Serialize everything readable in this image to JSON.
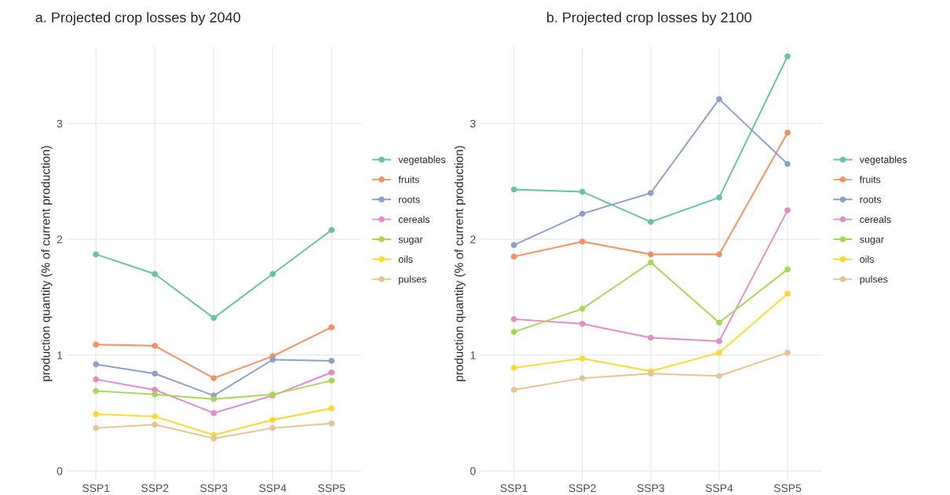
{
  "chart_data": [
    {
      "type": "line",
      "title": "a. Projected crop losses by 2040",
      "ylabel": "production quantity (% of current production)",
      "categories": [
        "SSP1",
        "SSP2",
        "SSP3",
        "SSP4",
        "SSP5"
      ],
      "ylim": [
        -0.08,
        3.66
      ],
      "yticks": [
        0,
        1,
        2,
        3
      ],
      "grid": true,
      "legend": "right",
      "marker": "circle",
      "line_style": "solid",
      "series": [
        {
          "name": "vegetables",
          "color": "#66c2a5",
          "values": [
            1.87,
            1.7,
            1.32,
            1.7,
            2.08
          ]
        },
        {
          "name": "fruits",
          "color": "#fc8d62",
          "values": [
            1.09,
            1.08,
            0.8,
            0.99,
            1.24
          ]
        },
        {
          "name": "roots",
          "color": "#8da0cb",
          "values": [
            0.92,
            0.84,
            0.65,
            0.96,
            0.95
          ]
        },
        {
          "name": "cereals",
          "color": "#e78ac3",
          "values": [
            0.79,
            0.7,
            0.5,
            0.65,
            0.85
          ]
        },
        {
          "name": "sugar",
          "color": "#a6d854",
          "values": [
            0.69,
            0.66,
            0.62,
            0.66,
            0.78
          ]
        },
        {
          "name": "oils",
          "color": "#ffd92f",
          "values": [
            0.49,
            0.47,
            0.31,
            0.44,
            0.54
          ]
        },
        {
          "name": "pulses",
          "color": "#e5c494",
          "values": [
            0.37,
            0.4,
            0.28,
            0.37,
            0.41
          ]
        }
      ]
    },
    {
      "type": "line",
      "title": "b. Projected crop losses by 2100",
      "ylabel": "production quantity (% of current production)",
      "categories": [
        "SSP1",
        "SSP2",
        "SSP3",
        "SSP4",
        "SSP5"
      ],
      "ylim": [
        -0.08,
        3.66
      ],
      "yticks": [
        0,
        1,
        2,
        3
      ],
      "grid": true,
      "legend": "right",
      "marker": "circle",
      "line_style": "solid",
      "series": [
        {
          "name": "vegetables",
          "color": "#66c2a5",
          "values": [
            2.43,
            2.41,
            2.15,
            2.36,
            3.58
          ]
        },
        {
          "name": "fruits",
          "color": "#fc8d62",
          "values": [
            1.85,
            1.98,
            1.87,
            1.87,
            2.92
          ]
        },
        {
          "name": "roots",
          "color": "#8da0cb",
          "values": [
            1.95,
            2.22,
            2.4,
            3.21,
            2.65
          ]
        },
        {
          "name": "cereals",
          "color": "#e78ac3",
          "values": [
            1.31,
            1.27,
            1.15,
            1.12,
            2.25
          ]
        },
        {
          "name": "sugar",
          "color": "#a6d854",
          "values": [
            1.2,
            1.4,
            1.8,
            1.28,
            1.74
          ]
        },
        {
          "name": "oils",
          "color": "#ffd92f",
          "values": [
            0.89,
            0.97,
            0.86,
            1.02,
            1.53
          ]
        },
        {
          "name": "pulses",
          "color": "#e5c494",
          "values": [
            0.7,
            0.8,
            0.84,
            0.82,
            1.02
          ]
        }
      ]
    }
  ]
}
